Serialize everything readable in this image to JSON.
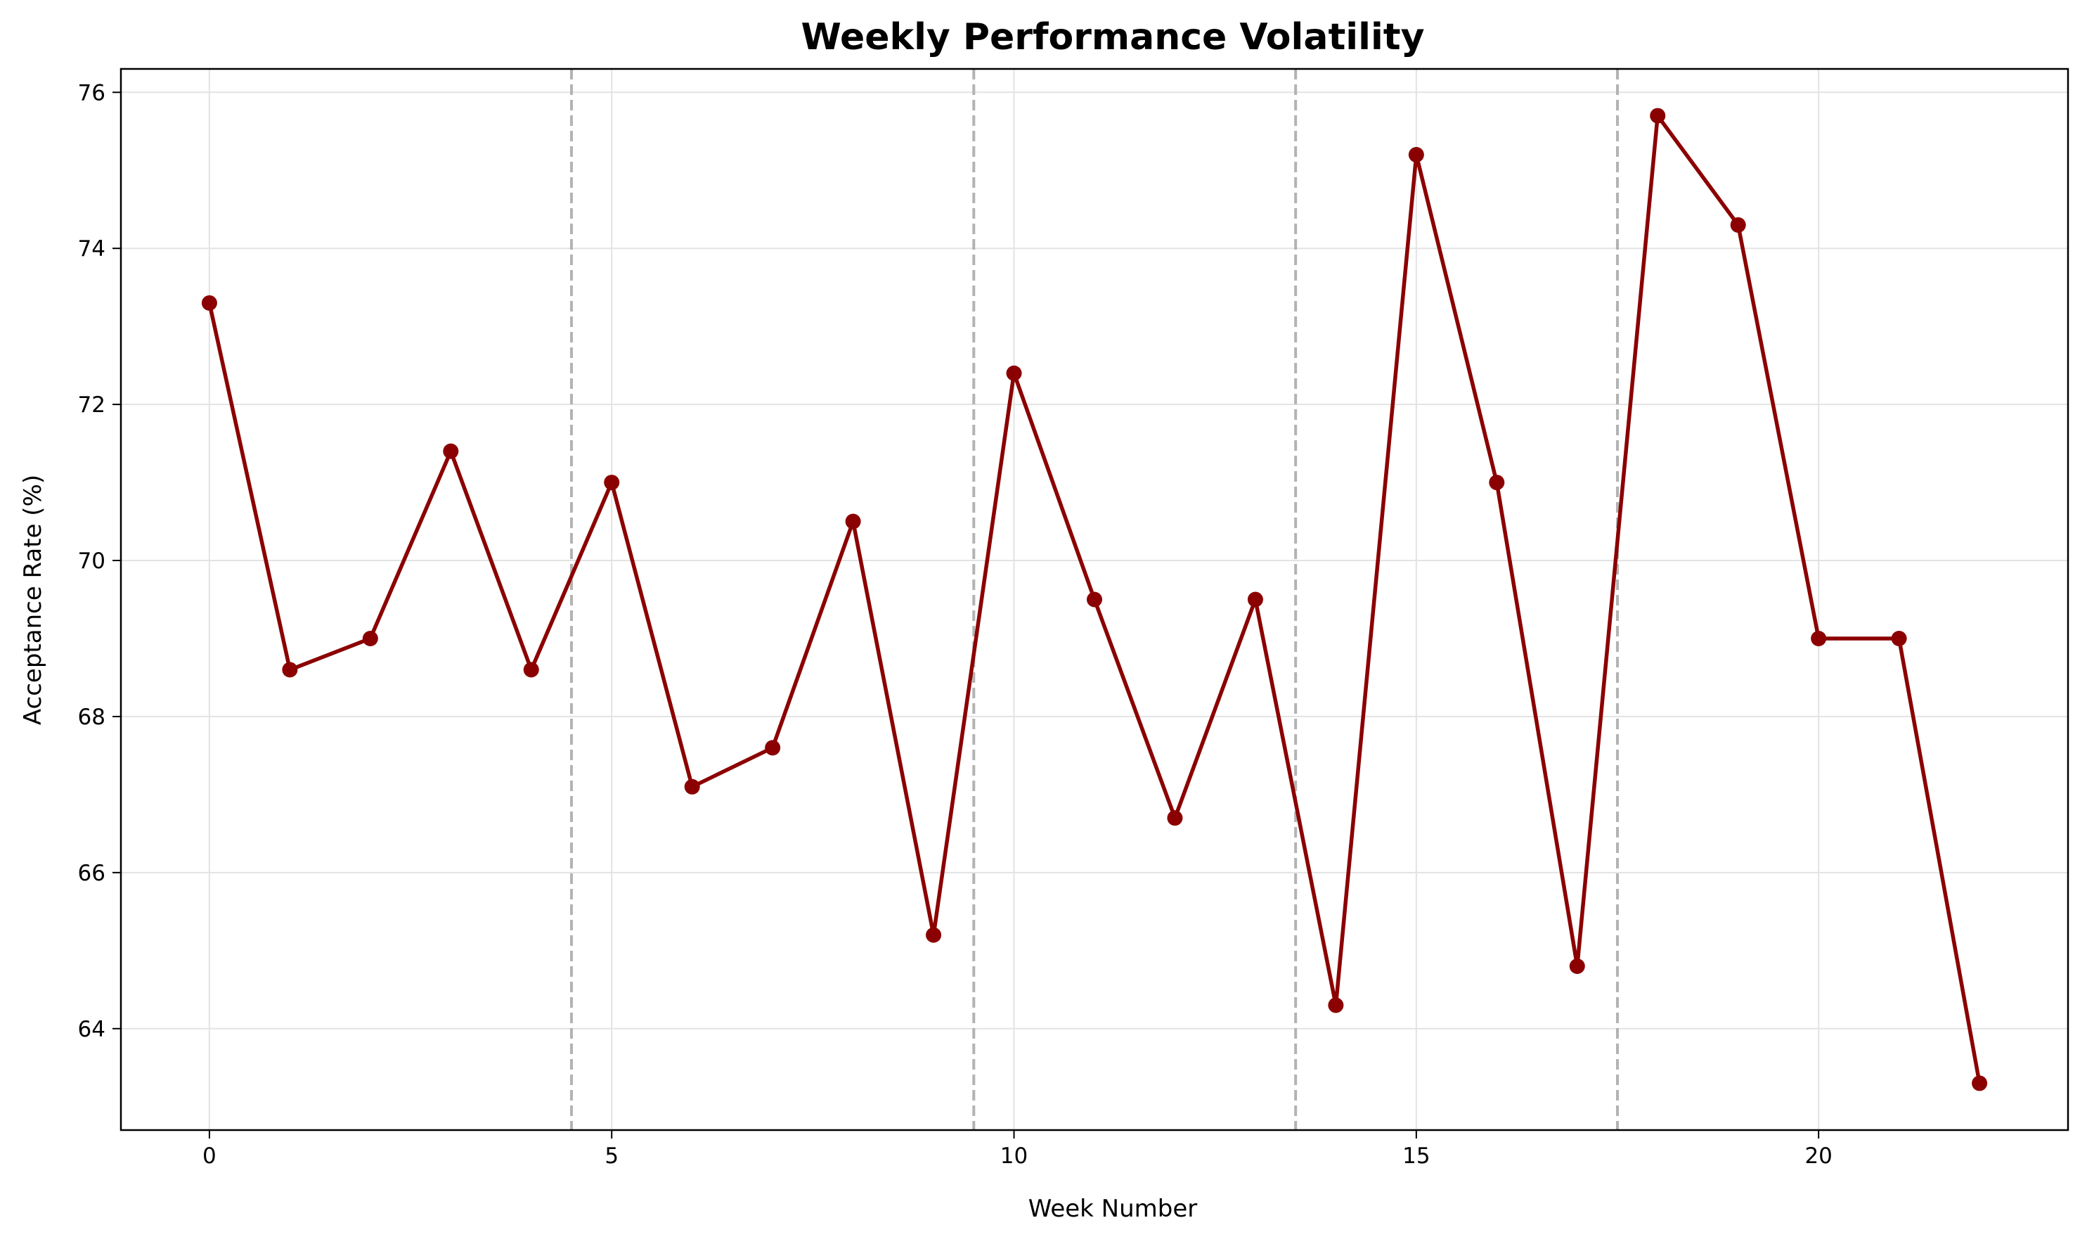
{
  "chart_data": {
    "type": "line",
    "title": "Weekly Performance Volatility",
    "xlabel": "Week Number",
    "ylabel": "Acceptance Rate (%)",
    "xlim": [
      -1.1,
      23.1
    ],
    "ylim": [
      62.7,
      76.3
    ],
    "xticks": [
      0,
      5,
      10,
      15,
      20
    ],
    "yticks": [
      64,
      66,
      68,
      70,
      72,
      74,
      76
    ],
    "grid": true,
    "legend": "none",
    "series": [
      {
        "x": [
          0,
          1,
          2,
          3,
          4,
          5,
          6,
          7,
          8,
          9,
          10,
          11,
          12,
          13,
          14,
          15,
          16,
          17,
          18,
          19,
          20,
          21,
          22
        ],
        "y": [
          73.3,
          68.6,
          69.0,
          71.4,
          68.6,
          71.0,
          67.1,
          67.6,
          70.5,
          65.2,
          72.4,
          69.5,
          66.7,
          69.5,
          64.3,
          75.2,
          71.0,
          64.8,
          75.7,
          74.3,
          69.0,
          69.0,
          63.3
        ],
        "color": "#8b0000",
        "marker": "circle"
      }
    ],
    "vertical_lines": {
      "x": [
        4.5,
        9.5,
        13.5,
        17.5
      ],
      "color": "#b3b3b3",
      "style": "dashed"
    }
  }
}
